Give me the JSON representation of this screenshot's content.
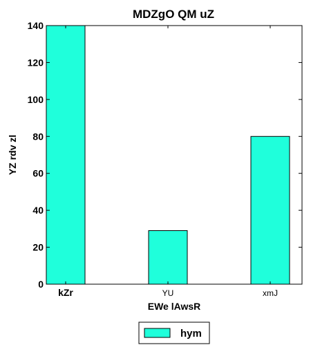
{
  "chart_data": {
    "type": "bar",
    "title": "MDZgO  QM uZ",
    "xlabel": "EWe lAwsR",
    "ylabel": "YZ rdv zl",
    "categories": [
      "kZr",
      "YU",
      "xmJ"
    ],
    "series": [
      {
        "name": "hym",
        "values": [
          140,
          29,
          80
        ],
        "color": "#1fffdb"
      }
    ],
    "ylim": [
      0,
      140
    ],
    "yticks": [
      "0",
      "20",
      "40",
      "60",
      "80",
      "100",
      "120",
      "140"
    ],
    "grid": false,
    "legend_position": "bottom-center"
  }
}
